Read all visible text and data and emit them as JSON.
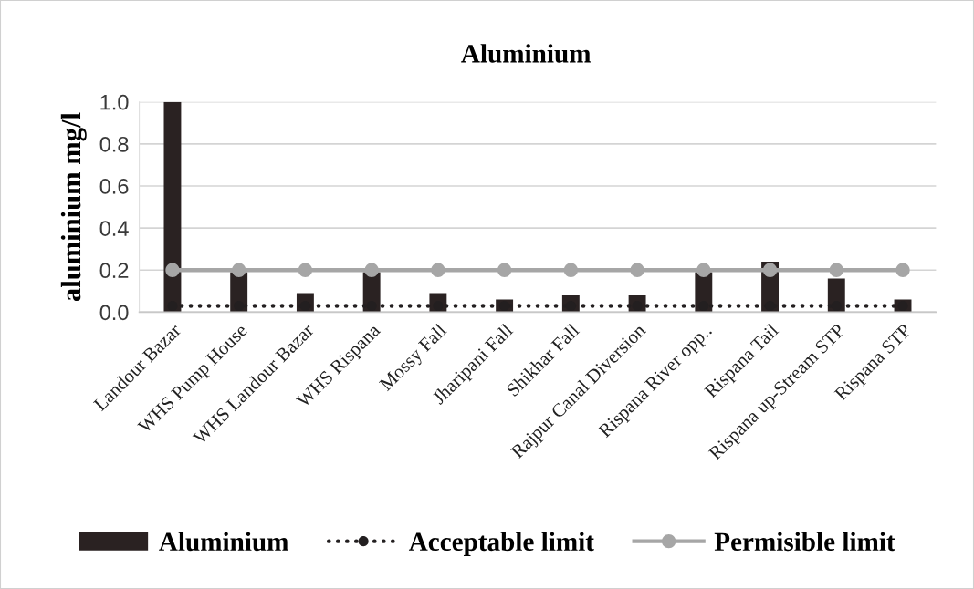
{
  "chart_data": {
    "type": "bar",
    "title": "Aluminium",
    "ylabel": "aluminium mg/l",
    "categories": [
      "Landour Bazar",
      "WHS Pump House",
      "WHS Landour Bazar",
      "WHS Rispana",
      "Mossy Fall",
      "Jharipani Fall",
      "Shikhar Fall",
      "Rajpur Canal Diversion",
      "Rispana River opp..",
      "Rispana Tail",
      "Rispana up-Stream STP",
      "Rispana STP"
    ],
    "series": [
      {
        "name": "Aluminium",
        "color": "#2a2222",
        "values": [
          1.0,
          0.19,
          0.09,
          0.19,
          0.09,
          0.06,
          0.08,
          0.08,
          0.19,
          0.24,
          0.16,
          0.06
        ]
      },
      {
        "name": "Acceptable limit",
        "type": "line",
        "color": "#231f20",
        "marker": "circle",
        "line_style": "dotted",
        "values": [
          0.03,
          0.03,
          0.03,
          0.03,
          0.03,
          0.03,
          0.03,
          0.03,
          0.03,
          0.03,
          0.03,
          0.03
        ]
      },
      {
        "name": "Permisible limit",
        "type": "line",
        "color": "#a6a6a6",
        "marker": "circle",
        "line_style": "solid",
        "values": [
          0.2,
          0.2,
          0.2,
          0.2,
          0.2,
          0.2,
          0.2,
          0.2,
          0.2,
          0.2,
          0.2,
          0.2
        ]
      }
    ],
    "ylim": [
      0,
      1.0
    ],
    "yticks": [
      {
        "value": 0,
        "label": "0.0"
      },
      {
        "value": 0.2,
        "label": "0.2"
      },
      {
        "value": 0.4,
        "label": "0.4"
      },
      {
        "value": 0.6,
        "label": "0.6"
      },
      {
        "value": 0.8,
        "label": "0.8"
      },
      {
        "value": 1.0,
        "label": "1.0"
      }
    ],
    "grid": "y",
    "legend": "bottom"
  }
}
